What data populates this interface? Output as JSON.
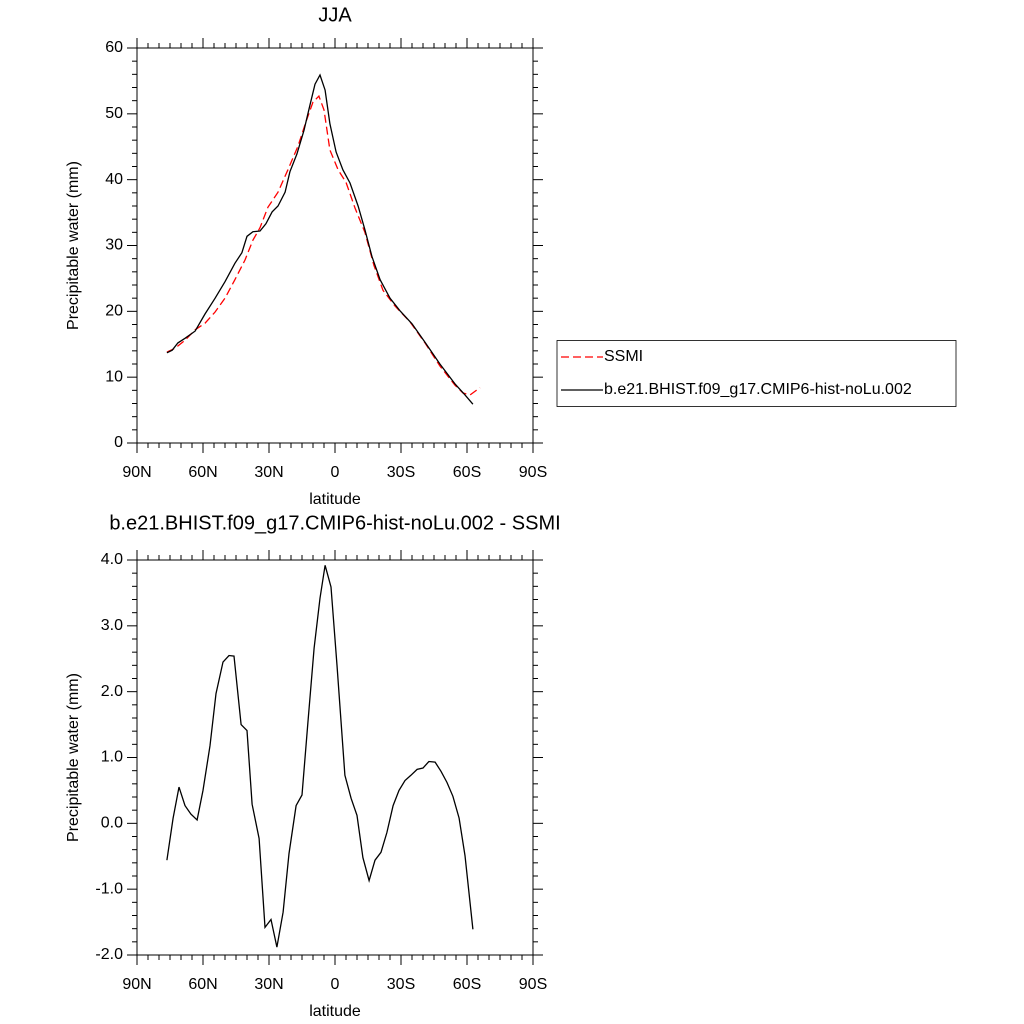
{
  "chart_data": [
    {
      "type": "line",
      "title": "JJA",
      "x_label": "latitude",
      "y_label": "Precipitable water (mm)",
      "xlim": [
        90,
        -90
      ],
      "xticks": [
        {
          "value": 90,
          "label": "90N"
        },
        {
          "value": 60,
          "label": "60N"
        },
        {
          "value": 30,
          "label": "30N"
        },
        0,
        {
          "value": -30,
          "label": "30S"
        },
        {
          "value": -60,
          "label": "60S"
        },
        {
          "value": -90,
          "label": "90S"
        }
      ],
      "ylim": [
        0,
        60
      ],
      "yticks": [
        0,
        10,
        20,
        30,
        40,
        50,
        60
      ],
      "legend": "right",
      "series": [
        {
          "name": "SSMI",
          "color": "#ff0000",
          "line_style": "dashed",
          "x": [
            76.4,
            72.7,
            68.2,
            63.6,
            59.1,
            54.5,
            50,
            45.5,
            40.9,
            37.3,
            34.1,
            30.5,
            25.9,
            21.4,
            16.8,
            13.2,
            10,
            7.3,
            5,
            2.3,
            -1.4,
            -5,
            -9.1,
            -13.6,
            -17.7,
            -21.8,
            -27.3,
            -34.1,
            -40.9,
            -47.7,
            -54.5,
            -58.2,
            -61.4,
            -65.9
          ],
          "values": [
            13.8,
            14.4,
            15.6,
            17.2,
            18.2,
            19.9,
            22.0,
            24.8,
            27.8,
            30.8,
            32.7,
            35.8,
            38.1,
            41.5,
            45.1,
            48.8,
            51.8,
            52.7,
            50.6,
            44.5,
            41.5,
            39.6,
            35.7,
            32.0,
            27.0,
            23.2,
            20.8,
            18.4,
            15.2,
            11.7,
            8.8,
            7.6,
            7.3,
            8.4
          ]
        },
        {
          "name": "b.e21.BHIST.f09_g17.CMIP6-hist-noLu.002",
          "color": "#000000",
          "line_style": "solid",
          "x": [
            76.4,
            74,
            71.4,
            68.2,
            63.6,
            59.1,
            54.5,
            50,
            45.5,
            42.3,
            40,
            37.3,
            34.1,
            31.4,
            28.6,
            25.9,
            22.7,
            20.5,
            17.3,
            14.1,
            11.4,
            9.1,
            6.8,
            4.5,
            2.3,
            -0.5,
            -3.6,
            -6.8,
            -10.5,
            -13.6,
            -16.8,
            -20.5,
            -25,
            -29.5,
            -35,
            -40.9,
            -47.7,
            -54.5,
            -59.1,
            -62.7
          ],
          "values": [
            13.7,
            14.1,
            15.2,
            15.9,
            17.0,
            19.6,
            22.0,
            24.5,
            27.3,
            28.9,
            31.4,
            32.1,
            32.2,
            33.3,
            35.1,
            36.0,
            38.1,
            41.2,
            43.9,
            47.5,
            51.3,
            54.5,
            55.9,
            53.6,
            48.5,
            44.2,
            41.5,
            39.5,
            36.0,
            32.4,
            28.3,
            24.8,
            22.0,
            20.1,
            18.1,
            15.3,
            12.0,
            9.0,
            7.3,
            5.9
          ]
        }
      ]
    },
    {
      "type": "line",
      "title": "b.e21.BHIST.f09_g17.CMIP6-hist-noLu.002 - SSMI",
      "x_label": "latitude",
      "y_label": "Precipitable water (mm)",
      "xlim": [
        90,
        -90
      ],
      "xticks": [
        {
          "value": 90,
          "label": "90N"
        },
        {
          "value": 60,
          "label": "60N"
        },
        {
          "value": 30,
          "label": "30N"
        },
        0,
        {
          "value": -30,
          "label": "30S"
        },
        {
          "value": -60,
          "label": "60S"
        },
        {
          "value": -90,
          "label": "90S"
        }
      ],
      "ylim": [
        -2,
        4
      ],
      "yticks": [
        {
          "value": -2,
          "label": "-2.0"
        },
        {
          "value": -1,
          "label": "-1.0"
        },
        {
          "value": 0,
          "label": "0.0"
        },
        {
          "value": 1,
          "label": "1.0"
        },
        {
          "value": 2,
          "label": "2.0"
        },
        {
          "value": 3,
          "label": "3.0"
        },
        {
          "value": 4,
          "label": "4.0"
        }
      ],
      "series": [
        {
          "color": "#000000",
          "line_style": "solid",
          "x": [
            76.4,
            73.6,
            70.9,
            68.2,
            65.5,
            62.7,
            60,
            56.8,
            54.1,
            50.9,
            48.2,
            45.9,
            42.7,
            40,
            37.7,
            34.5,
            31.8,
            29.1,
            26.4,
            23.6,
            20.9,
            17.7,
            15,
            12.3,
            9.5,
            6.8,
            4.5,
            1.8,
            -0.9,
            -4.5,
            -7.3,
            -10,
            -12.7,
            -15.5,
            -18.2,
            -20.9,
            -23.6,
            -26.4,
            -29.1,
            -31.8,
            -34.5,
            -37.3,
            -40,
            -42.7,
            -45.5,
            -48.2,
            -50.9,
            -53.6,
            -56.4,
            -59.1,
            -62.7
          ],
          "values": [
            -0.56,
            0.08,
            0.55,
            0.27,
            0.14,
            0.05,
            0.5,
            1.18,
            1.97,
            2.45,
            2.55,
            2.54,
            1.5,
            1.41,
            0.29,
            -0.23,
            -1.58,
            -1.46,
            -1.88,
            -1.35,
            -0.46,
            0.27,
            0.43,
            1.53,
            2.66,
            3.42,
            3.92,
            3.59,
            2.4,
            0.73,
            0.38,
            0.12,
            -0.52,
            -0.87,
            -0.56,
            -0.44,
            -0.14,
            0.27,
            0.5,
            0.65,
            0.73,
            0.82,
            0.84,
            0.94,
            0.93,
            0.79,
            0.62,
            0.41,
            0.08,
            -0.49,
            -1.61
          ]
        }
      ]
    }
  ]
}
